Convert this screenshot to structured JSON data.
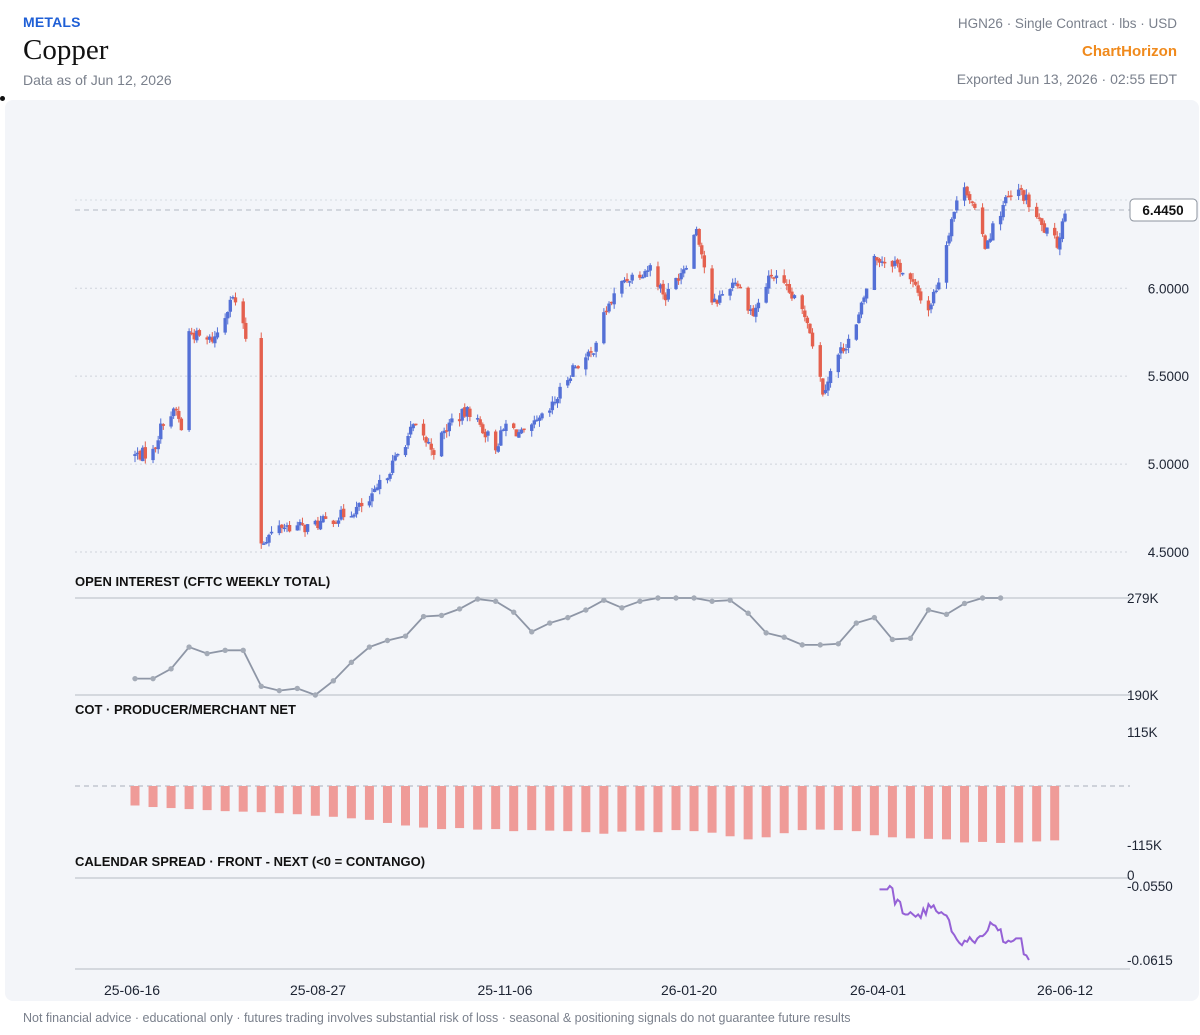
{
  "header": {
    "category": "METALS",
    "title": "Copper",
    "as_of": "Data as of Jun 12, 2026",
    "contract": "HGN26 · Single Contract · lbs · USD",
    "brand": "ChartHorizon",
    "exported": "Exported Jun 13, 2026 · 02:55 EDT"
  },
  "footer": "Not financial advice · educational only · futures trading involves substantial risk of loss · seasonal & positioning signals do not guarantee future results",
  "colors": {
    "up": "#5470d6",
    "down": "#e4604e",
    "oi": "#8e96a6",
    "cot": "#ef9b98",
    "spread": "#9561d6"
  },
  "chart_data": [
    {
      "type": "candlestick",
      "name": "price",
      "ylim": [
        4.5,
        6.65
      ],
      "y_ticks": [
        "4.5000",
        "5.0000",
        "5.5000",
        "6.0000"
      ],
      "last_value": 6.445,
      "last_label": "6.4450",
      "x_ticks": [
        {
          "date": "2025-06-16",
          "label": "25-06-16"
        },
        {
          "date": "2025-08-27",
          "label": "25-08-27"
        },
        {
          "date": "2025-11-06",
          "label": "25-11-06"
        },
        {
          "date": "2026-01-20",
          "label": "26-01-20"
        },
        {
          "date": "2026-04-01",
          "label": "26-04-01"
        },
        {
          "date": "2026-06-12",
          "label": "26-06-12"
        }
      ],
      "anchors": [
        [
          "2025-06-16",
          5.05
        ],
        [
          "2025-06-23",
          5.07
        ],
        [
          "2025-06-27",
          5.25
        ],
        [
          "2025-07-02",
          5.3
        ],
        [
          "2025-07-04",
          5.2
        ],
        [
          "2025-07-07",
          5.75
        ],
        [
          "2025-07-14",
          5.7
        ],
        [
          "2025-07-17",
          5.72
        ],
        [
          "2025-07-21",
          5.85
        ],
        [
          "2025-07-23",
          5.95
        ],
        [
          "2025-07-25",
          5.92
        ],
        [
          "2025-07-29",
          5.72
        ],
        [
          "2025-08-04",
          4.56
        ],
        [
          "2025-08-12",
          4.65
        ],
        [
          "2025-08-22",
          4.64
        ],
        [
          "2025-09-03",
          4.7
        ],
        [
          "2025-09-15",
          4.78
        ],
        [
          "2025-09-24",
          5.0
        ],
        [
          "2025-10-02",
          5.21
        ],
        [
          "2025-10-10",
          5.08
        ],
        [
          "2025-10-17",
          5.25
        ],
        [
          "2025-10-24",
          5.3
        ],
        [
          "2025-11-03",
          5.1
        ],
        [
          "2025-11-07",
          5.22
        ],
        [
          "2025-11-14",
          5.16
        ],
        [
          "2025-11-24",
          5.3
        ],
        [
          "2025-12-03",
          5.55
        ],
        [
          "2025-12-10",
          5.62
        ],
        [
          "2025-12-16",
          5.88
        ],
        [
          "2025-12-23",
          6.05
        ],
        [
          "2026-01-02",
          6.12
        ],
        [
          "2026-01-08",
          5.95
        ],
        [
          "2026-01-16",
          6.15
        ],
        [
          "2026-01-20",
          6.35
        ],
        [
          "2026-01-26",
          5.9
        ],
        [
          "2026-02-04",
          6.05
        ],
        [
          "2026-02-11",
          5.85
        ],
        [
          "2026-02-18",
          6.08
        ],
        [
          "2026-02-25",
          5.97
        ],
        [
          "2026-03-04",
          5.83
        ],
        [
          "2026-03-10",
          5.42
        ],
        [
          "2026-03-16",
          5.62
        ],
        [
          "2026-03-23",
          5.78
        ],
        [
          "2026-03-30",
          6.17
        ],
        [
          "2026-04-07",
          6.15
        ],
        [
          "2026-04-14",
          6.02
        ],
        [
          "2026-04-20",
          5.88
        ],
        [
          "2026-04-24",
          6.05
        ],
        [
          "2026-04-29",
          6.4
        ],
        [
          "2026-05-04",
          6.6
        ],
        [
          "2026-05-12",
          6.25
        ],
        [
          "2026-05-20",
          6.5
        ],
        [
          "2026-05-26",
          6.55
        ],
        [
          "2026-06-03",
          6.35
        ],
        [
          "2026-06-09",
          6.25
        ],
        [
          "2026-06-12",
          6.445
        ]
      ]
    },
    {
      "type": "line",
      "name": "OPEN INTEREST (CFTC WEEKLY TOTAL)",
      "title": "OPEN INTEREST (CFTC WEEKLY TOTAL)",
      "ylim": [
        190000,
        279000
      ],
      "y_ticks": [
        "279K",
        "190K"
      ],
      "start_date": "2025-06-16",
      "interval_days": 7,
      "values": [
        205000,
        205000,
        214000,
        234000,
        228000,
        231000,
        231000,
        198000,
        194000,
        196000,
        190000,
        203000,
        220000,
        234000,
        240000,
        244000,
        262000,
        263000,
        269000,
        278000,
        276000,
        266000,
        248000,
        256000,
        261000,
        268000,
        277000,
        270000,
        276000,
        282000,
        282000,
        282000,
        276000,
        277000,
        265000,
        247000,
        243000,
        236000,
        236000,
        237000,
        256000,
        261000,
        241000,
        242000,
        268000,
        264000,
        274000,
        284000,
        281000
      ]
    },
    {
      "type": "bar",
      "name": "COT · PRODUCER/MERCHANT NET",
      "title": "COT · PRODUCER/MERCHANT NET",
      "ylim": [
        -115000,
        115000
      ],
      "y_ticks": [
        "115K",
        "-115K"
      ],
      "start_date": "2025-06-16",
      "interval_days": 7,
      "values": [
        -38000,
        -41000,
        -43000,
        -45000,
        -47000,
        -49000,
        -50000,
        -51000,
        -53000,
        -55000,
        -58000,
        -60000,
        -63000,
        -66000,
        -72000,
        -77000,
        -81000,
        -84000,
        -82000,
        -85000,
        -84000,
        -88000,
        -86000,
        -87000,
        -88000,
        -90000,
        -93000,
        -89000,
        -87000,
        -90000,
        -86000,
        -88000,
        -91000,
        -98000,
        -104000,
        -100000,
        -92000,
        -86000,
        -85000,
        -86000,
        -88000,
        -96000,
        -100000,
        -102000,
        -103000,
        -104000,
        -110000,
        -109000,
        -111000,
        -110000,
        -108000,
        -106000
      ]
    },
    {
      "type": "line",
      "name": "CALENDAR SPREAD · FRONT - NEXT (<0 = CONTANGO)",
      "title": "CALENDAR SPREAD · FRONT - NEXT (<0 = CONTANGO)",
      "ylim": [
        -0.0615,
        -0.0543
      ],
      "y_ticks": [
        "0",
        "-0.0550",
        "-0.0615"
      ],
      "start_date": "2026-04-01",
      "interval_days": 1,
      "values": [
        -0.0553,
        -0.0553,
        -0.0553,
        -0.0553,
        -0.055,
        -0.0552,
        -0.0566,
        -0.0562,
        -0.0564,
        -0.0574,
        -0.0575,
        -0.0575,
        -0.0573,
        -0.0575,
        -0.0577,
        -0.0575,
        -0.0578,
        -0.057,
        -0.0575,
        -0.0566,
        -0.0569,
        -0.0567,
        -0.0572,
        -0.0574,
        -0.0573,
        -0.0575,
        -0.0576,
        -0.058,
        -0.059,
        -0.0593,
        -0.0597,
        -0.06,
        -0.0602,
        -0.0598,
        -0.0599,
        -0.0595,
        -0.0598,
        -0.06,
        -0.0596,
        -0.0594,
        -0.0594,
        -0.0592,
        -0.0589,
        -0.0582,
        -0.0584,
        -0.0585,
        -0.0589,
        -0.0588,
        -0.0599,
        -0.06,
        -0.0598,
        -0.0599,
        -0.0598,
        -0.0596,
        -0.0596,
        -0.0596,
        -0.061,
        -0.0611,
        -0.0615
      ]
    }
  ]
}
